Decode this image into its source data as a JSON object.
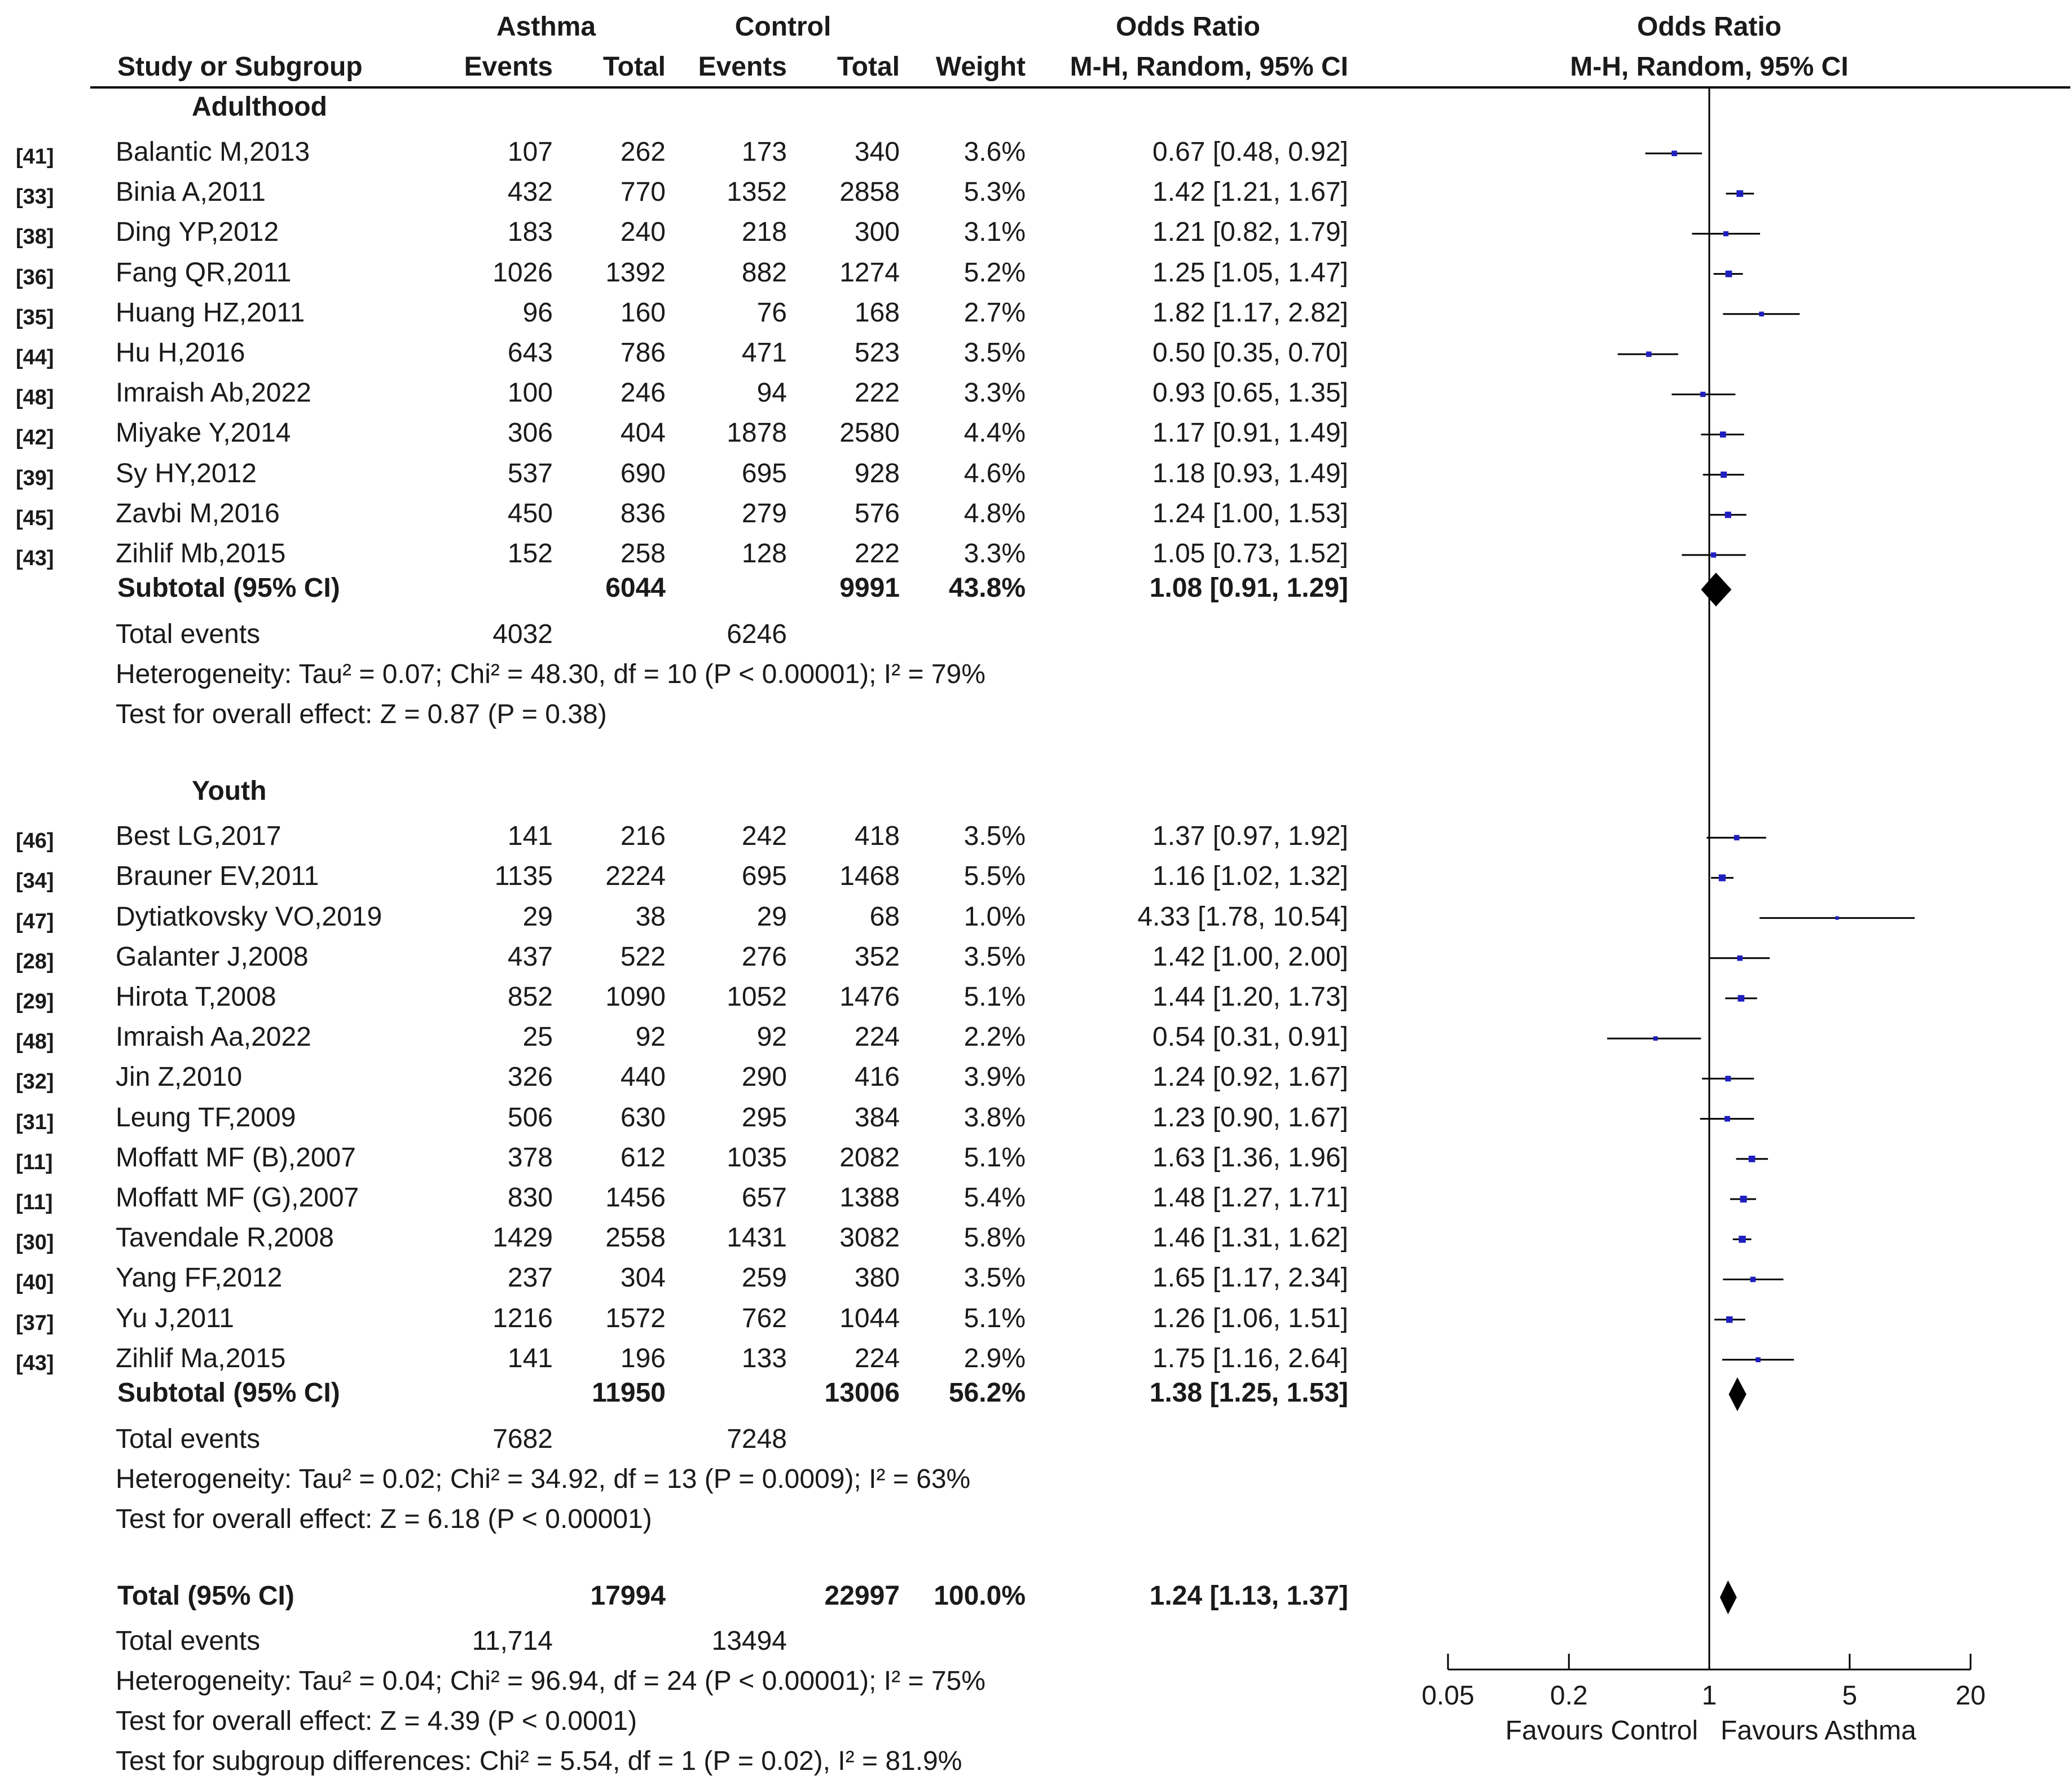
{
  "header": {
    "group1": "Asthma",
    "group2": "Control",
    "odds_ratio": "Odds Ratio",
    "odds_ratio_plot": "Odds Ratio",
    "study": "Study or Subgroup",
    "events1": "Events",
    "total1": "Total",
    "events2": "Events",
    "total2": "Total",
    "weight": "Weight",
    "method": "M-H, Random, 95% CI",
    "method_plot": "M-H, Random, 95% CI"
  },
  "subgroups": [
    {
      "name": "Adulthood",
      "studies": [
        {
          "ref": "[41]",
          "name": "Balantic M,2013",
          "e1": "107",
          "t1": "262",
          "e2": "173",
          "t2": "340",
          "weight": "3.6%",
          "ci": "0.67 [0.48, 0.92]"
        },
        {
          "ref": "[33]",
          "name": "Binia A,2011",
          "e1": "432",
          "t1": "770",
          "e2": "1352",
          "t2": "2858",
          "weight": "5.3%",
          "ci": "1.42 [1.21, 1.67]"
        },
        {
          "ref": "[38]",
          "name": "Ding YP,2012",
          "e1": "183",
          "t1": "240",
          "e2": "218",
          "t2": "300",
          "weight": "3.1%",
          "ci": "1.21 [0.82, 1.79]"
        },
        {
          "ref": "[36]",
          "name": "Fang QR,2011",
          "e1": "1026",
          "t1": "1392",
          "e2": "882",
          "t2": "1274",
          "weight": "5.2%",
          "ci": "1.25 [1.05, 1.47]"
        },
        {
          "ref": "[35]",
          "name": "Huang HZ,2011",
          "e1": "96",
          "t1": "160",
          "e2": "76",
          "t2": "168",
          "weight": "2.7%",
          "ci": "1.82 [1.17, 2.82]"
        },
        {
          "ref": "[44]",
          "name": "Hu H,2016",
          "e1": "643",
          "t1": "786",
          "e2": "471",
          "t2": "523",
          "weight": "3.5%",
          "ci": "0.50 [0.35, 0.70]"
        },
        {
          "ref": "[48]",
          "name": "Imraish Ab,2022",
          "e1": "100",
          "t1": "246",
          "e2": "94",
          "t2": "222",
          "weight": "3.3%",
          "ci": "0.93 [0.65, 1.35]"
        },
        {
          "ref": "[42]",
          "name": "Miyake Y,2014",
          "e1": "306",
          "t1": "404",
          "e2": "1878",
          "t2": "2580",
          "weight": "4.4%",
          "ci": "1.17 [0.91, 1.49]"
        },
        {
          "ref": "[39]",
          "name": "Sy HY,2012",
          "e1": "537",
          "t1": "690",
          "e2": "695",
          "t2": "928",
          "weight": "4.6%",
          "ci": "1.18 [0.93, 1.49]"
        },
        {
          "ref": "[45]",
          "name": "Zavbi M,2016",
          "e1": "450",
          "t1": "836",
          "e2": "279",
          "t2": "576",
          "weight": "4.8%",
          "ci": "1.24 [1.00, 1.53]"
        },
        {
          "ref": "[43]",
          "name": "Zihlif Mb,2015",
          "e1": "152",
          "t1": "258",
          "e2": "128",
          "t2": "222",
          "weight": "3.3%",
          "ci": "1.05 [0.73, 1.52]"
        }
      ],
      "subtotal": {
        "label": "Subtotal (95% CI)",
        "t1": "6044",
        "t2": "9991",
        "weight": "43.8%",
        "ci": "1.08 [0.91, 1.29]"
      },
      "total_events": {
        "label": "Total events",
        "e1": "4032",
        "e2": "6246"
      },
      "heterogeneity": "Heterogeneity: Tau² = 0.07; Chi² = 48.30, df = 10 (P < 0.00001); I² = 79%",
      "overall": "Test for overall effect: Z = 0.87 (P = 0.38)"
    },
    {
      "name": "Youth",
      "studies": [
        {
          "ref": "[46]",
          "name": "Best LG,2017",
          "e1": "141",
          "t1": "216",
          "e2": "242",
          "t2": "418",
          "weight": "3.5%",
          "ci": "1.37 [0.97, 1.92]"
        },
        {
          "ref": "[34]",
          "name": "Brauner EV,2011",
          "e1": "1135",
          "t1": "2224",
          "e2": "695",
          "t2": "1468",
          "weight": "5.5%",
          "ci": "1.16 [1.02, 1.32]"
        },
        {
          "ref": "[47]",
          "name": "Dytiatkovsky VO,2019",
          "e1": "29",
          "t1": "38",
          "e2": "29",
          "t2": "68",
          "weight": "1.0%",
          "ci": "4.33 [1.78, 10.54]"
        },
        {
          "ref": "[28]",
          "name": "Galanter J,2008",
          "e1": "437",
          "t1": "522",
          "e2": "276",
          "t2": "352",
          "weight": "3.5%",
          "ci": "1.42 [1.00, 2.00]"
        },
        {
          "ref": "[29]",
          "name": "Hirota T,2008",
          "e1": "852",
          "t1": "1090",
          "e2": "1052",
          "t2": "1476",
          "weight": "5.1%",
          "ci": "1.44 [1.20, 1.73]"
        },
        {
          "ref": "[48]",
          "name": "Imraish Aa,2022",
          "e1": "25",
          "t1": "92",
          "e2": "92",
          "t2": "224",
          "weight": "2.2%",
          "ci": "0.54 [0.31, 0.91]"
        },
        {
          "ref": "[32]",
          "name": "Jin Z,2010",
          "e1": "326",
          "t1": "440",
          "e2": "290",
          "t2": "416",
          "weight": "3.9%",
          "ci": "1.24 [0.92, 1.67]"
        },
        {
          "ref": "[31]",
          "name": "Leung TF,2009",
          "e1": "506",
          "t1": "630",
          "e2": "295",
          "t2": "384",
          "weight": "3.8%",
          "ci": "1.23 [0.90, 1.67]"
        },
        {
          "ref": "[11]",
          "name": "Moffatt MF (B),2007",
          "e1": "378",
          "t1": "612",
          "e2": "1035",
          "t2": "2082",
          "weight": "5.1%",
          "ci": "1.63 [1.36, 1.96]"
        },
        {
          "ref": "[11]",
          "name": "Moffatt MF (G),2007",
          "e1": "830",
          "t1": "1456",
          "e2": "657",
          "t2": "1388",
          "weight": "5.4%",
          "ci": "1.48 [1.27, 1.71]"
        },
        {
          "ref": "[30]",
          "name": "Tavendale R,2008",
          "e1": "1429",
          "t1": "2558",
          "e2": "1431",
          "t2": "3082",
          "weight": "5.8%",
          "ci": "1.46 [1.31, 1.62]"
        },
        {
          "ref": "[40]",
          "name": "Yang FF,2012",
          "e1": "237",
          "t1": "304",
          "e2": "259",
          "t2": "380",
          "weight": "3.5%",
          "ci": "1.65 [1.17, 2.34]"
        },
        {
          "ref": "[37]",
          "name": "Yu J,2011",
          "e1": "1216",
          "t1": "1572",
          "e2": "762",
          "t2": "1044",
          "weight": "5.1%",
          "ci": "1.26 [1.06, 1.51]"
        },
        {
          "ref": "[43]",
          "name": "Zihlif Ma,2015",
          "e1": "141",
          "t1": "196",
          "e2": "133",
          "t2": "224",
          "weight": "2.9%",
          "ci": "1.75 [1.16, 2.64]"
        }
      ],
      "subtotal": {
        "label": "Subtotal (95% CI)",
        "t1": "11950",
        "t2": "13006",
        "weight": "56.2%",
        "ci": "1.38 [1.25, 1.53]"
      },
      "total_events": {
        "label": "Total events",
        "e1": "7682",
        "e2": "7248"
      },
      "heterogeneity": "Heterogeneity: Tau² = 0.02; Chi² = 34.92, df = 13 (P = 0.0009); I² = 63%",
      "overall": "Test for overall effect: Z = 6.18 (P < 0.00001)"
    }
  ],
  "total": {
    "label": "Total (95% CI)",
    "t1": "17994",
    "t2": "22997",
    "weight": "100.0%",
    "ci": "1.24 [1.13, 1.37]"
  },
  "total_events": {
    "label": "Total events",
    "e1": "11,714",
    "e2": "13494"
  },
  "heterogeneity": "Heterogeneity: Tau² = 0.04; Chi² = 96.94, df = 24 (P < 0.00001); I² = 75%",
  "overall": "Test for overall effect: Z = 4.39 (P < 0.0001)",
  "subgroup_diff": "Test for subgroup differences: Chi² = 5.54, df = 1 (P = 0.02), I² = 81.9%",
  "colors": {
    "point": "#1f1fbf",
    "line": "#000000",
    "text": "#1a1a1a"
  },
  "chart_data": {
    "type": "forest",
    "title": "Odds Ratio M-H, Random, 95% CI",
    "xscale": "log",
    "xlim": [
      0.05,
      20
    ],
    "ticks": [
      0.05,
      0.2,
      1,
      5,
      20
    ],
    "tick_labels": [
      "0.05",
      "0.2",
      "1",
      "5",
      "20"
    ],
    "xlabel_left": "Favours Control",
    "xlabel_right": "Favours Asthma",
    "reference_line": 1,
    "studies": [
      {
        "name": "Balantic M,2013",
        "or": 0.67,
        "lo": 0.48,
        "hi": 0.92,
        "weight": 3.6
      },
      {
        "name": "Binia A,2011",
        "or": 1.42,
        "lo": 1.21,
        "hi": 1.67,
        "weight": 5.3
      },
      {
        "name": "Ding YP,2012",
        "or": 1.21,
        "lo": 0.82,
        "hi": 1.79,
        "weight": 3.1
      },
      {
        "name": "Fang QR,2011",
        "or": 1.25,
        "lo": 1.05,
        "hi": 1.47,
        "weight": 5.2
      },
      {
        "name": "Huang HZ,2011",
        "or": 1.82,
        "lo": 1.17,
        "hi": 2.82,
        "weight": 2.7
      },
      {
        "name": "Hu H,2016",
        "or": 0.5,
        "lo": 0.35,
        "hi": 0.7,
        "weight": 3.5
      },
      {
        "name": "Imraish Ab,2022",
        "or": 0.93,
        "lo": 0.65,
        "hi": 1.35,
        "weight": 3.3
      },
      {
        "name": "Miyake Y,2014",
        "or": 1.17,
        "lo": 0.91,
        "hi": 1.49,
        "weight": 4.4
      },
      {
        "name": "Sy HY,2012",
        "or": 1.18,
        "lo": 0.93,
        "hi": 1.49,
        "weight": 4.6
      },
      {
        "name": "Zavbi M,2016",
        "or": 1.24,
        "lo": 1.0,
        "hi": 1.53,
        "weight": 4.8
      },
      {
        "name": "Zihlif Mb,2015",
        "or": 1.05,
        "lo": 0.73,
        "hi": 1.52,
        "weight": 3.3
      },
      {
        "name": "Best LG,2017",
        "or": 1.37,
        "lo": 0.97,
        "hi": 1.92,
        "weight": 3.5
      },
      {
        "name": "Brauner EV,2011",
        "or": 1.16,
        "lo": 1.02,
        "hi": 1.32,
        "weight": 5.5
      },
      {
        "name": "Dytiatkovsky VO,2019",
        "or": 4.33,
        "lo": 1.78,
        "hi": 10.54,
        "weight": 1.0
      },
      {
        "name": "Galanter J,2008",
        "or": 1.42,
        "lo": 1.0,
        "hi": 2.0,
        "weight": 3.5
      },
      {
        "name": "Hirota T,2008",
        "or": 1.44,
        "lo": 1.2,
        "hi": 1.73,
        "weight": 5.1
      },
      {
        "name": "Imraish Aa,2022",
        "or": 0.54,
        "lo": 0.31,
        "hi": 0.91,
        "weight": 2.2
      },
      {
        "name": "Jin Z,2010",
        "or": 1.24,
        "lo": 0.92,
        "hi": 1.67,
        "weight": 3.9
      },
      {
        "name": "Leung TF,2009",
        "or": 1.23,
        "lo": 0.9,
        "hi": 1.67,
        "weight": 3.8
      },
      {
        "name": "Moffatt MF (B),2007",
        "or": 1.63,
        "lo": 1.36,
        "hi": 1.96,
        "weight": 5.1
      },
      {
        "name": "Moffatt MF (G),2007",
        "or": 1.48,
        "lo": 1.27,
        "hi": 1.71,
        "weight": 5.4
      },
      {
        "name": "Tavendale R,2008",
        "or": 1.46,
        "lo": 1.31,
        "hi": 1.62,
        "weight": 5.8
      },
      {
        "name": "Yang FF,2012",
        "or": 1.65,
        "lo": 1.17,
        "hi": 2.34,
        "weight": 3.5
      },
      {
        "name": "Yu J,2011",
        "or": 1.26,
        "lo": 1.06,
        "hi": 1.51,
        "weight": 5.1
      },
      {
        "name": "Zihlif Ma,2015",
        "or": 1.75,
        "lo": 1.16,
        "hi": 2.64,
        "weight": 2.9
      }
    ],
    "pooled": [
      {
        "name": "Adulthood Subtotal",
        "or": 1.08,
        "lo": 0.91,
        "hi": 1.29
      },
      {
        "name": "Youth Subtotal",
        "or": 1.38,
        "lo": 1.25,
        "hi": 1.53
      },
      {
        "name": "Total",
        "or": 1.24,
        "lo": 1.13,
        "hi": 1.37
      }
    ]
  }
}
